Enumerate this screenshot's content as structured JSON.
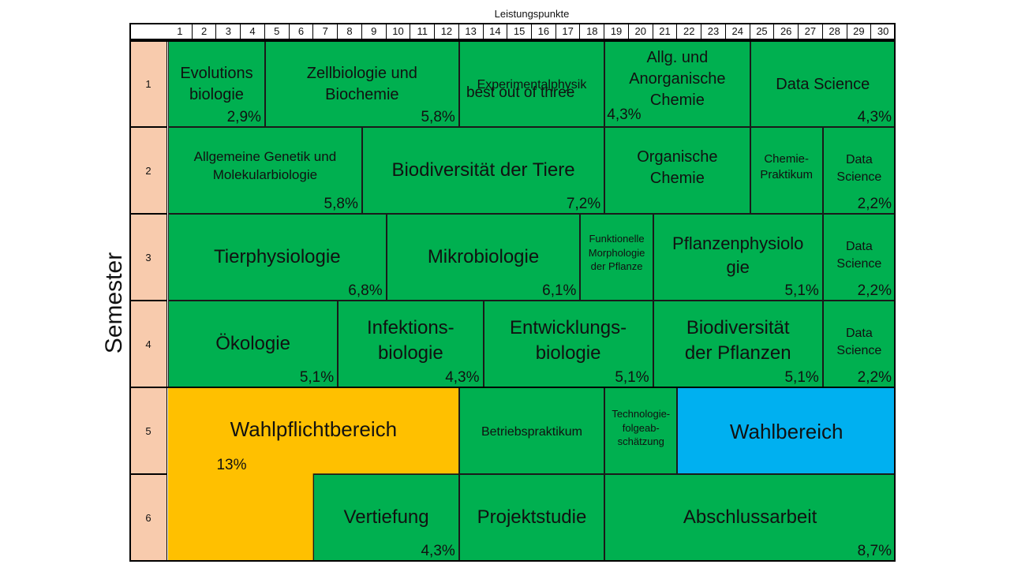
{
  "title": "Leistungspunkte",
  "ylabel": "Semester",
  "columns": [
    "1",
    "2",
    "3",
    "4",
    "5",
    "6",
    "7",
    "8",
    "9",
    "10",
    "11",
    "12",
    "13",
    "14",
    "15",
    "16",
    "17",
    "18",
    "19",
    "20",
    "21",
    "22",
    "23",
    "24",
    "25",
    "26",
    "27",
    "28",
    "29",
    "30"
  ],
  "semesters": [
    "1",
    "2",
    "3",
    "4",
    "5",
    "6"
  ],
  "colors": {
    "green": "#00b050",
    "orange": "#ffc000",
    "blue": "#00b0f0",
    "semester": "#f8cbad"
  },
  "modules": [
    {
      "name": "Evolutions\nbiologie",
      "percent": "2,9%",
      "color": "green",
      "col": 1,
      "span": 4,
      "row": 1,
      "rows": 1,
      "fs": 20,
      "ny": 28
    },
    {
      "name": "Zellbiologie und\nBiochemie",
      "percent": "5,8%",
      "color": "green",
      "col": 5,
      "span": 8,
      "row": 1,
      "rows": 1,
      "fs": 20,
      "ny": 28
    },
    {
      "name": "Experimentalphysik",
      "percent": "",
      "color": "green",
      "col": 13,
      "span": 6,
      "row": 1,
      "rows": 1,
      "fs": 16,
      "ny": 45
    },
    {
      "name": "Allg. und\nAnorganische\nChemie",
      "percent": "",
      "color": "green",
      "col": 19,
      "span": 6,
      "row": 1,
      "rows": 1,
      "fs": 20,
      "ny": 8
    },
    {
      "name": "Data Science",
      "percent": "4,3%",
      "color": "green",
      "col": 25,
      "span": 6,
      "row": 1,
      "rows": 1,
      "fs": 20,
      "ny": 42
    },
    {
      "name": "Allgemeine Genetik und\nMolekularbiologie",
      "percent": "5,8%",
      "color": "green",
      "col": 1,
      "span": 8,
      "row": 2,
      "rows": 1,
      "fs": 17,
      "ny": 26
    },
    {
      "name": "Biodiversität der Tiere",
      "percent": "7,2%",
      "color": "green",
      "col": 9,
      "span": 10,
      "row": 2,
      "rows": 1,
      "fs": 24,
      "ny": 38
    },
    {
      "name": "Organische\nChemie",
      "percent": "",
      "color": "green",
      "col": 19,
      "span": 6,
      "row": 2,
      "rows": 1,
      "fs": 20,
      "ny": 24
    },
    {
      "name": "Chemie-\nPraktikum",
      "percent": "",
      "color": "green",
      "col": 25,
      "span": 3,
      "row": 2,
      "rows": 1,
      "fs": 15,
      "ny": 30
    },
    {
      "name": "Data\nScience",
      "percent": "2,2%",
      "color": "green",
      "col": 28,
      "span": 3,
      "row": 2,
      "rows": 1,
      "fs": 16,
      "ny": 30
    },
    {
      "name": "Tierphysiologie",
      "percent": "6,8%",
      "color": "green",
      "col": 1,
      "span": 9,
      "row": 3,
      "rows": 1,
      "fs": 24,
      "ny": 38
    },
    {
      "name": "Mikrobiologie",
      "percent": "6,1%",
      "color": "green",
      "col": 10,
      "span": 8,
      "row": 3,
      "rows": 1,
      "fs": 24,
      "ny": 38
    },
    {
      "name": "Funktionelle\nMorphologie\nder Pflanze",
      "percent": "",
      "color": "green",
      "col": 18,
      "span": 3,
      "row": 3,
      "rows": 1,
      "fs": 13,
      "ny": 22
    },
    {
      "name": "Pflanzenphysiolo\ngie",
      "percent": "5,1%",
      "color": "green",
      "col": 21,
      "span": 7,
      "row": 3,
      "rows": 1,
      "fs": 22,
      "ny": 22
    },
    {
      "name": "Data\nScience",
      "percent": "2,2%",
      "color": "green",
      "col": 28,
      "span": 3,
      "row": 3,
      "rows": 1,
      "fs": 16,
      "ny": 30
    },
    {
      "name": "Ökologie",
      "percent": "5,1%",
      "color": "green",
      "col": 1,
      "span": 7,
      "row": 4,
      "rows": 1,
      "fs": 24,
      "ny": 38
    },
    {
      "name": "Infektions-\nbiologie",
      "percent": "4,3%",
      "color": "green",
      "col": 8,
      "span": 6,
      "row": 4,
      "rows": 1,
      "fs": 24,
      "ny": 18
    },
    {
      "name": "Entwicklungs-\nbiologie",
      "percent": "5,1%",
      "color": "green",
      "col": 14,
      "span": 7,
      "row": 4,
      "rows": 1,
      "fs": 24,
      "ny": 18
    },
    {
      "name": "Biodiversität\nder Pflanzen",
      "percent": "5,1%",
      "color": "green",
      "col": 21,
      "span": 7,
      "row": 4,
      "rows": 1,
      "fs": 24,
      "ny": 18
    },
    {
      "name": "Data\nScience",
      "percent": "2,2%",
      "color": "green",
      "col": 28,
      "span": 3,
      "row": 4,
      "rows": 1,
      "fs": 16,
      "ny": 30
    },
    {
      "name": "Betriebspraktikum",
      "percent": "",
      "color": "green",
      "col": 13,
      "span": 6,
      "row": 5,
      "rows": 1,
      "fs": 16,
      "ny": 45
    },
    {
      "name": "Technologie-\nfolgeab-\nschätzung",
      "percent": "",
      "color": "green",
      "col": 19,
      "span": 3,
      "row": 5,
      "rows": 1,
      "fs": 13,
      "ny": 24
    },
    {
      "name": "Wahlbereich",
      "percent": "",
      "color": "blue",
      "col": 22,
      "span": 9,
      "row": 5,
      "rows": 1,
      "fs": 26,
      "ny": 38
    },
    {
      "name": "Vertiefung",
      "percent": "4,3%",
      "color": "green",
      "col": 7,
      "span": 6,
      "row": 6,
      "rows": 1,
      "fs": 24,
      "ny": 38
    },
    {
      "name": "Projektstudie",
      "percent": "",
      "color": "green",
      "col": 13,
      "span": 6,
      "row": 6,
      "rows": 1,
      "fs": 24,
      "ny": 38
    },
    {
      "name": "Abschlussarbeit",
      "percent": "8,7%",
      "color": "green",
      "col": 19,
      "span": 12,
      "row": 6,
      "rows": 1,
      "fs": 24,
      "ny": 38
    }
  ],
  "wahlpflicht": {
    "name": "Wahlpflichtbereich",
    "percent": "13%",
    "color": "orange"
  },
  "notes": [
    {
      "text": "best out of three",
      "col": 13.3,
      "row": 1,
      "dy": 82,
      "fs": 19
    },
    {
      "text": "4,3%",
      "col": 19.1,
      "row": 1,
      "dy": 110,
      "fs": 19
    }
  ]
}
